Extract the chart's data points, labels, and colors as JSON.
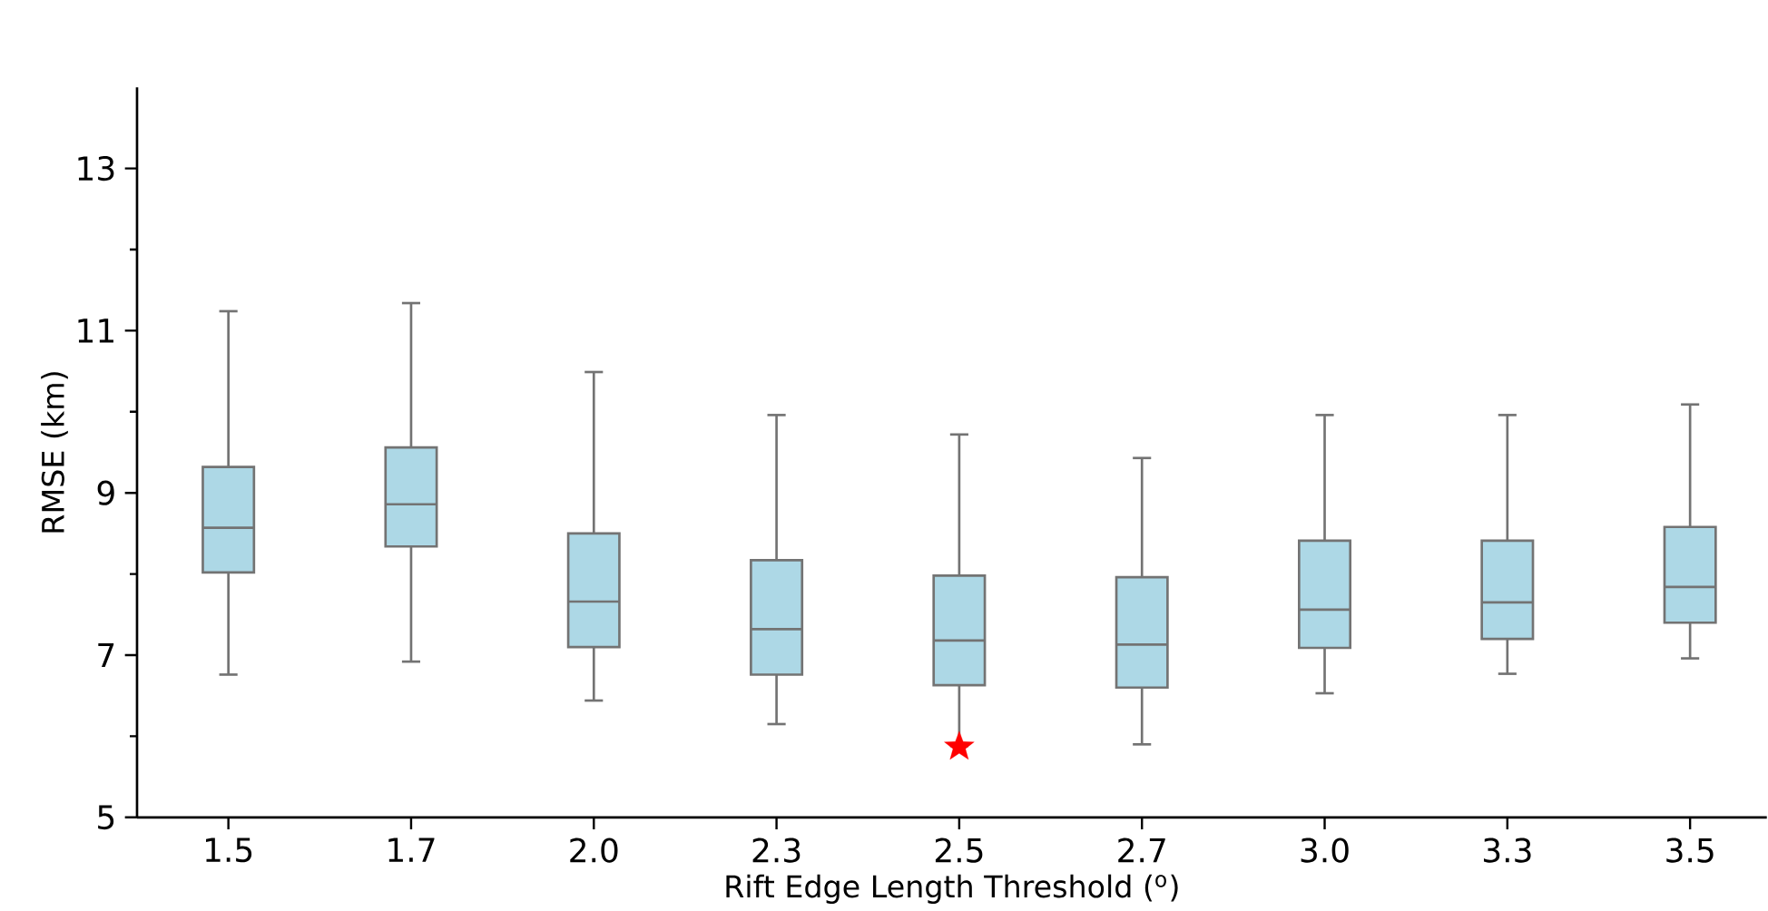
{
  "chart_data": {
    "type": "box",
    "xlabel": "Rift Edge Length Threshold ($^{o}$)",
    "ylabel": "RMSE (km)",
    "categories": [
      "1.5",
      "1.7",
      "2.0",
      "2.3",
      "2.5",
      "2.7",
      "3.0",
      "3.3",
      "3.5"
    ],
    "ylim": [
      5,
      14
    ],
    "yticks": [
      5,
      {
        "value": 6,
        "label": null
      },
      7,
      {
        "value": 8,
        "label": null
      },
      9,
      {
        "value": 10,
        "label": null
      },
      11,
      {
        "value": 12,
        "label": null
      },
      13
    ],
    "grid": false,
    "series": [
      {
        "color": "#add8e6",
        "boxes": [
          {
            "low": 6.76,
            "q1": 8.02,
            "median": 8.57,
            "q3": 9.32,
            "high": 11.24
          },
          {
            "low": 6.92,
            "q1": 8.34,
            "median": 8.86,
            "q3": 9.56,
            "high": 11.34
          },
          {
            "low": 6.44,
            "q1": 7.1,
            "median": 7.66,
            "q3": 8.5,
            "high": 10.49
          },
          {
            "low": 6.15,
            "q1": 6.76,
            "median": 7.32,
            "q3": 8.17,
            "high": 9.96
          },
          {
            "low": 5.88,
            "q1": 6.63,
            "median": 7.18,
            "q3": 7.98,
            "high": 9.72
          },
          {
            "low": 5.9,
            "q1": 6.6,
            "median": 7.13,
            "q3": 7.96,
            "high": 9.43
          },
          {
            "low": 6.53,
            "q1": 7.09,
            "median": 7.56,
            "q3": 8.41,
            "high": 9.96
          },
          {
            "low": 6.77,
            "q1": 7.2,
            "median": 7.65,
            "q3": 8.41,
            "high": 9.96
          },
          {
            "low": 6.96,
            "q1": 7.4,
            "median": 7.84,
            "q3": 8.58,
            "high": 10.09
          }
        ]
      },
      {
        "type": "scatter",
        "x": [
          "2.5"
        ],
        "values": [
          5.87
        ],
        "color": "#ff0000",
        "marker": "star"
      }
    ]
  }
}
